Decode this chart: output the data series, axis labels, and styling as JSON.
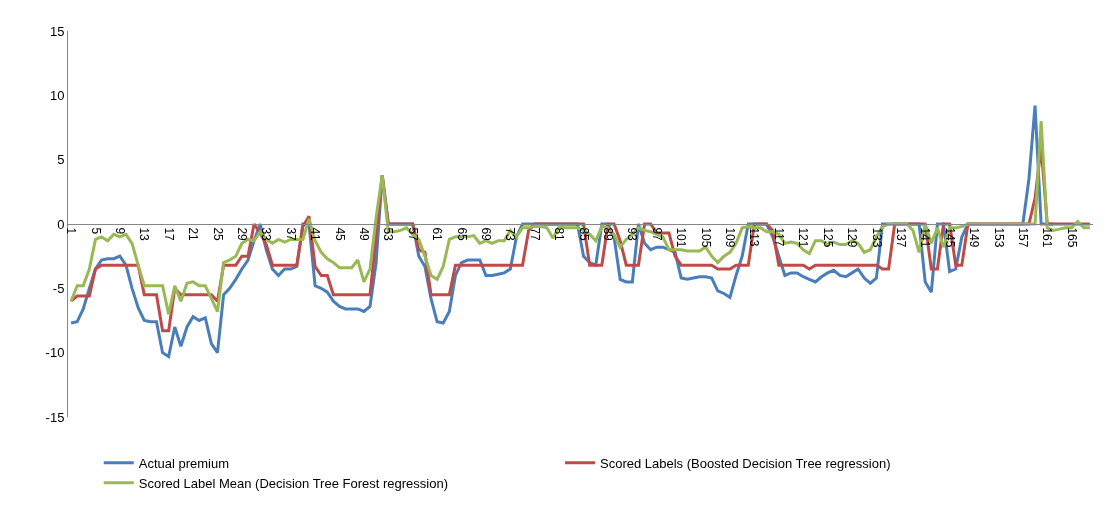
{
  "chart_data": {
    "type": "line",
    "categories": [
      "1",
      null,
      null,
      null,
      "5",
      null,
      null,
      null,
      "9",
      null,
      null,
      null,
      "13",
      null,
      null,
      null,
      "17",
      null,
      null,
      null,
      "21",
      null,
      null,
      null,
      "25",
      null,
      null,
      null,
      "29",
      null,
      null,
      null,
      "33",
      null,
      null,
      null,
      "37",
      null,
      null,
      null,
      "41",
      null,
      null,
      null,
      "45",
      null,
      null,
      null,
      "49",
      null,
      null,
      null,
      "53",
      null,
      null,
      null,
      "57",
      null,
      null,
      null,
      "61",
      null,
      null,
      null,
      "65",
      null,
      null,
      null,
      "69",
      null,
      null,
      null,
      "73",
      null,
      null,
      null,
      "77",
      null,
      null,
      null,
      "81",
      null,
      null,
      null,
      "85",
      null,
      null,
      null,
      "89",
      null,
      null,
      null,
      "93",
      null,
      null,
      null,
      "97",
      null,
      null,
      null,
      "101",
      null,
      null,
      null,
      "105",
      null,
      null,
      null,
      "109",
      null,
      null,
      null,
      "113",
      null,
      null,
      null,
      "117",
      null,
      null,
      null,
      "121",
      null,
      null,
      null,
      "125",
      null,
      null,
      null,
      "129",
      null,
      null,
      null,
      "133",
      null,
      null,
      null,
      "137",
      null,
      null,
      null,
      "141",
      null,
      null,
      null,
      "145",
      null,
      null,
      null,
      "149",
      null,
      null,
      null,
      "153",
      null,
      null,
      null,
      "157",
      null,
      null,
      null,
      "161",
      null,
      null,
      null,
      "165",
      null,
      null,
      null
    ],
    "series": [
      {
        "name": "Actual premium",
        "color": "#4a7ebb",
        "values": [
          -7.7,
          -7.6,
          -6.6,
          -5,
          -3.5,
          -2.8,
          -2.7,
          -2.7,
          -2.5,
          -3.2,
          -5,
          -6.5,
          -7.5,
          -7.6,
          -7.6,
          -10,
          -10.3,
          -8,
          -9.5,
          -8,
          -7.2,
          -7.5,
          -7.3,
          -9.3,
          -10,
          -5.5,
          -5,
          -4.3,
          -3.5,
          -2.8,
          -1.3,
          0,
          -2,
          -3.5,
          -4,
          -3.5,
          -3.5,
          -3.3,
          0,
          0,
          -4.8,
          -5,
          -5.3,
          -6,
          -6.4,
          -6.6,
          -6.6,
          -6.6,
          -6.8,
          -6.4,
          -3,
          3.8,
          0,
          0,
          0,
          0,
          0,
          -2.5,
          -3.3,
          -5.8,
          -7.6,
          -7.7,
          -6.8,
          -4,
          -3,
          -2.8,
          -2.8,
          -2.8,
          -4,
          -4,
          -3.9,
          -3.8,
          -3.5,
          -1,
          0,
          0,
          0,
          0,
          0,
          0,
          0,
          0,
          0,
          0,
          -2.5,
          -3,
          -3.2,
          0,
          0,
          -1,
          -4.3,
          -4.5,
          -4.5,
          0,
          -1.5,
          -2,
          -1.8,
          -1.8,
          -2,
          -2.2,
          -4.2,
          -4.3,
          -4.2,
          -4.1,
          -4.1,
          -4.2,
          -5.2,
          -5.4,
          -5.7,
          -4,
          -2.5,
          0,
          0,
          0,
          0,
          -1,
          -2.5,
          -4,
          -3.8,
          -3.8,
          -4.1,
          -4.3,
          -4.5,
          -4.1,
          -3.8,
          -3.6,
          -4,
          -4.1,
          -3.8,
          -3.5,
          -4.2,
          -4.6,
          -4.2,
          0,
          0,
          0,
          0,
          0,
          0,
          0,
          -4.5,
          -5.3,
          0,
          0,
          -3.7,
          -3.5,
          -1,
          0,
          0,
          0,
          0,
          0,
          0,
          0,
          0,
          0,
          0,
          3.5,
          9.2,
          0,
          0,
          0,
          null,
          null,
          null,
          null,
          null,
          null
        ]
      },
      {
        "name": "Scored Labels (Boosted Decision Tree regression)",
        "color": "#be4b48",
        "values": [
          -6,
          -5.6,
          -5.6,
          -5.6,
          -3.5,
          -3.2,
          -3.2,
          -3.2,
          -3.2,
          -3.2,
          -3.2,
          -3.2,
          -5.5,
          -5.5,
          -5.5,
          -8.3,
          -8.3,
          -5,
          -5.5,
          -5.5,
          -5.5,
          -5.5,
          -5.5,
          -5.5,
          -6,
          -3.2,
          -3.2,
          -3.2,
          -2.5,
          -2.5,
          0,
          -0.7,
          -1.6,
          -3.2,
          -3.2,
          -3.2,
          -3.2,
          -3.2,
          -0.2,
          0.6,
          -3.3,
          -4,
          -4,
          -5.5,
          -5.5,
          -5.5,
          -5.5,
          -5.5,
          -5.5,
          -5.5,
          -1,
          3.8,
          0,
          0,
          0,
          0,
          0,
          -2,
          -2.2,
          -5.5,
          -5.5,
          -5.5,
          -5.5,
          -3.2,
          -3.2,
          -3.2,
          -3.2,
          -3.2,
          -3.2,
          -3.2,
          -3.2,
          -3.2,
          -3.2,
          -3.2,
          -3.2,
          -0.5,
          0,
          0,
          0,
          0,
          0,
          0,
          0,
          0,
          0,
          -3.2,
          -3.2,
          -3.2,
          0,
          0,
          -1.3,
          -3.2,
          -3.2,
          -3.2,
          0,
          0,
          -0.7,
          -0.7,
          -0.7,
          -2.5,
          -3.2,
          -3.2,
          -3.2,
          -3.2,
          -3.2,
          -3.2,
          -3.5,
          -3.5,
          -3.5,
          -3.2,
          -3.2,
          -3.2,
          0,
          0,
          0,
          -0.5,
          -3.2,
          -3.2,
          -3.2,
          -3.2,
          -3.2,
          -3.5,
          -3.2,
          -3.2,
          -3.2,
          -3.2,
          -3.2,
          -3.2,
          -3.2,
          -3.2,
          -3.2,
          -3.2,
          -3.2,
          -3.5,
          -3.5,
          0,
          0,
          0,
          0,
          0,
          0,
          -3.5,
          -3.5,
          0,
          0,
          -3.2,
          -3.2,
          0,
          0,
          0,
          0,
          0,
          0,
          0,
          0,
          0,
          0,
          0,
          2,
          6,
          0,
          0,
          0,
          0,
          0,
          0,
          0,
          0
        ]
      },
      {
        "name": "Scored Label Mean (Decision Tree Forest regression)",
        "color": "#98b954",
        "values": [
          -6,
          -4.8,
          -4.8,
          -3.5,
          -1.2,
          -1,
          -1.3,
          -0.8,
          -1,
          -0.8,
          -1.5,
          -3.2,
          -4.8,
          -4.8,
          -4.8,
          -4.8,
          -7,
          -4.8,
          -6,
          -4.6,
          -4.5,
          -4.8,
          -4.8,
          -5.8,
          -6.8,
          -3,
          -2.8,
          -2.5,
          -1.5,
          -1.2,
          -1.3,
          -0.6,
          -1.2,
          -1.5,
          -1.2,
          -1.4,
          -1.2,
          -1.2,
          -1.2,
          0.4,
          -1.3,
          -2.2,
          -2.7,
          -3,
          -3.4,
          -3.4,
          -3.4,
          -2.8,
          -4.5,
          -3.5,
          0.5,
          3.8,
          -0.6,
          -0.6,
          -0.5,
          -0.3,
          -0.8,
          -1.2,
          -2.5,
          -4,
          -4.3,
          -3.3,
          -1.2,
          -1,
          -1,
          -1,
          -0.9,
          -1.5,
          -1.3,
          -1.5,
          -1.3,
          -1.3,
          -0.5,
          -1,
          -0.3,
          -0.3,
          -0.2,
          -0.2,
          -0.3,
          -1.1,
          -0.2,
          -0.3,
          -0.3,
          -0.3,
          -0.5,
          -0.8,
          -1.3,
          -0.2,
          -0.3,
          -0.8,
          -1.8,
          -1.2,
          -0.8,
          -0.3,
          -0.5,
          -0.6,
          -0.8,
          -1,
          -2,
          -2,
          -2,
          -2.1,
          -2.1,
          -2.1,
          -1.8,
          -2.5,
          -3,
          -2.5,
          -2.2,
          -1.5,
          -0.3,
          -0.2,
          -0.3,
          -0.3,
          -0.6,
          -0.6,
          -0.8,
          -1.5,
          -1.4,
          -1.5,
          -2,
          -2.3,
          -1.3,
          -1.3,
          -1.6,
          -1.4,
          -1.6,
          -1.6,
          -1.3,
          -1.5,
          -2.2,
          -2,
          -1,
          -0.2,
          0,
          0,
          0,
          0,
          -0.5,
          -2.2,
          0,
          -1.5,
          -0.3,
          -1.8,
          -0.3,
          -0.3,
          -0.2,
          0,
          0,
          0,
          0,
          0,
          0,
          0,
          0,
          0,
          0,
          0,
          0,
          8,
          -0.3,
          -0.5,
          -0.4,
          -0.3,
          -0.3,
          0.2,
          -0.3,
          -0.3
        ]
      }
    ],
    "ylim": [
      -15,
      15
    ],
    "yticks": [
      -15,
      -10,
      -5,
      0,
      5,
      10,
      15
    ],
    "grid": false,
    "legend": "bottom",
    "marker": "none",
    "line_style": "solid"
  }
}
